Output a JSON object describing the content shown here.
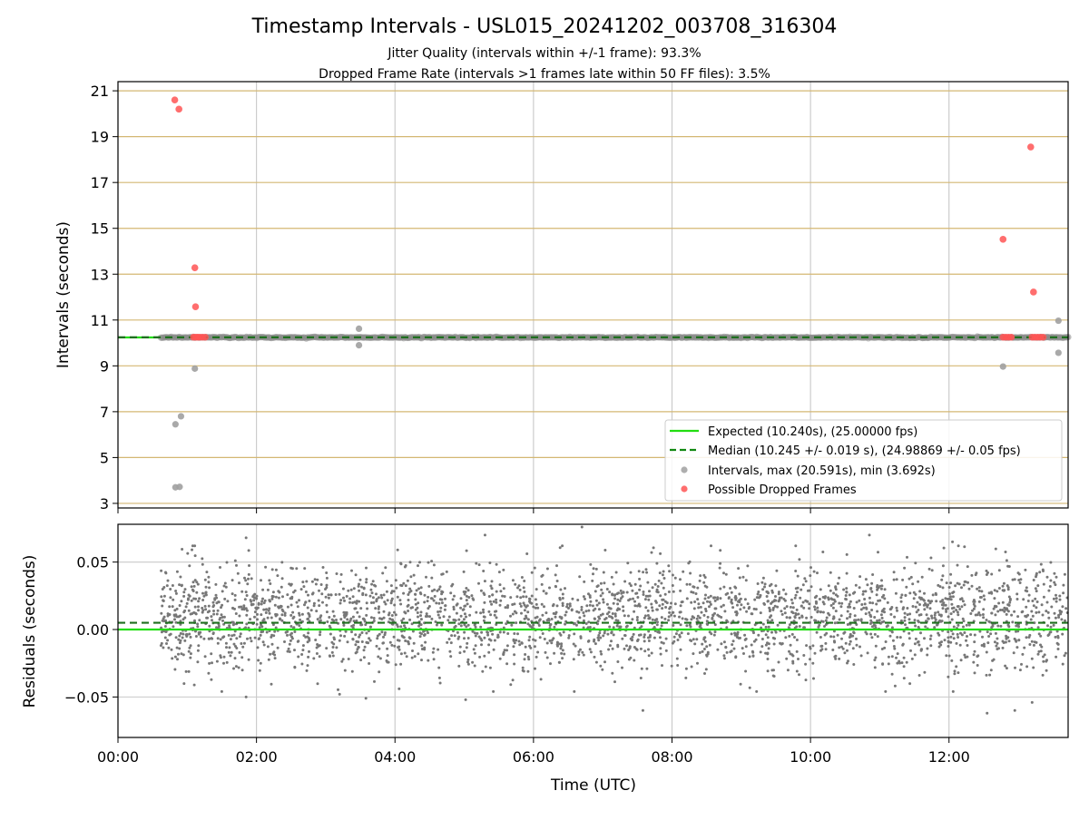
{
  "figure": {
    "title": "Timestamp Intervals - USL015_20241202_003708_316304",
    "subtitle_1": "Jitter Quality (intervals within +/-1 frame): 93.3%",
    "subtitle_2": "Dropped Frame Rate (intervals >1 frames late within 50 FF files): 3.5%"
  },
  "chart_data": [
    {
      "type": "scatter",
      "name": "intervals",
      "ylabel": "Intervals (seconds)",
      "xlim_hours": [
        0.0,
        13.72
      ],
      "ylim": [
        2.8,
        21.4
      ],
      "yticks": [
        "21",
        "19",
        "17",
        "15",
        "13",
        "11",
        "9",
        "7",
        "5",
        "3"
      ],
      "ytick_values": [
        21,
        19,
        17,
        15,
        13,
        11,
        9,
        7,
        5,
        3
      ],
      "grid": true,
      "gridline_color": "#d4b773",
      "expected_interval": 10.24,
      "median_interval": 10.245,
      "legend_position": "lower-right",
      "legend": [
        {
          "label": "Expected (10.240s), (25.00000 fps)",
          "style": "solid-line",
          "color": "#22dd11"
        },
        {
          "label": "Median (10.245 +/- 0.019 s), (24.98869 +/- 0.05 fps)",
          "style": "dashed-line",
          "color": "#118811"
        },
        {
          "label": "Intervals, max (20.591s), min (3.692s)",
          "style": "marker",
          "color": "#a0a0a0"
        },
        {
          "label": "Possible Dropped Frames",
          "style": "marker",
          "color": "#ff5555"
        }
      ],
      "intervals_band": {
        "x_start": 0.62,
        "x_end": 13.72,
        "y": 10.24
      },
      "gray_outliers": [
        {
          "x": 0.83,
          "y": 6.45
        },
        {
          "x": 0.91,
          "y": 6.8
        },
        {
          "x": 0.83,
          "y": 3.7
        },
        {
          "x": 0.89,
          "y": 3.72
        },
        {
          "x": 1.11,
          "y": 8.88
        },
        {
          "x": 3.48,
          "y": 10.62
        },
        {
          "x": 3.48,
          "y": 9.9
        },
        {
          "x": 12.78,
          "y": 8.97
        },
        {
          "x": 13.58,
          "y": 10.97
        },
        {
          "x": 13.58,
          "y": 9.57
        }
      ],
      "dropped_frames": [
        {
          "x": 0.82,
          "y": 20.6
        },
        {
          "x": 0.88,
          "y": 20.2
        },
        {
          "x": 1.11,
          "y": 13.28
        },
        {
          "x": 1.12,
          "y": 11.58
        },
        {
          "x": 1.09,
          "y": 10.25
        },
        {
          "x": 1.12,
          "y": 10.25
        },
        {
          "x": 1.15,
          "y": 10.25
        },
        {
          "x": 1.18,
          "y": 10.25
        },
        {
          "x": 1.22,
          "y": 10.25
        },
        {
          "x": 1.26,
          "y": 10.25
        },
        {
          "x": 12.78,
          "y": 14.52
        },
        {
          "x": 13.18,
          "y": 18.55
        },
        {
          "x": 13.22,
          "y": 12.22
        },
        {
          "x": 12.78,
          "y": 10.25
        },
        {
          "x": 12.82,
          "y": 10.25
        },
        {
          "x": 12.86,
          "y": 10.25
        },
        {
          "x": 12.9,
          "y": 10.25
        },
        {
          "x": 13.2,
          "y": 10.25
        },
        {
          "x": 13.24,
          "y": 10.25
        },
        {
          "x": 13.28,
          "y": 10.25
        },
        {
          "x": 13.32,
          "y": 10.25
        },
        {
          "x": 13.36,
          "y": 10.25
        }
      ]
    },
    {
      "type": "scatter",
      "name": "residuals",
      "ylabel": "Residuals (seconds)",
      "xlabel": "Time (UTC)",
      "xlim_hours": [
        0.0,
        13.72
      ],
      "ylim": [
        -0.08,
        0.078
      ],
      "yticks": [
        "0.05",
        "0.00",
        "−0.05"
      ],
      "ytick_values": [
        0.05,
        0.0,
        -0.05
      ],
      "xticks": [
        "00:00",
        "02:00",
        "04:00",
        "06:00",
        "08:00",
        "10:00",
        "12:00"
      ],
      "xtick_hours": [
        0,
        2,
        4,
        6,
        8,
        10,
        12
      ],
      "grid": true,
      "expected_residual": 0.0,
      "median_residual": 0.005,
      "residual_clusters": [
        0.02,
        -0.005
      ],
      "residual_spread": 0.015,
      "x_range_hours": [
        0.62,
        13.72
      ],
      "point_count": 3000,
      "extreme_points": [
        {
          "x": 1.85,
          "y": 0.068
        },
        {
          "x": 5.3,
          "y": 0.07
        },
        {
          "x": 6.7,
          "y": 0.076
        },
        {
          "x": 10.85,
          "y": 0.07
        },
        {
          "x": 12.05,
          "y": 0.065
        },
        {
          "x": 1.85,
          "y": -0.05
        },
        {
          "x": 3.2,
          "y": -0.048
        },
        {
          "x": 3.58,
          "y": -0.051
        },
        {
          "x": 5.02,
          "y": -0.052
        },
        {
          "x": 7.58,
          "y": -0.06
        },
        {
          "x": 12.55,
          "y": -0.062
        },
        {
          "x": 12.95,
          "y": -0.06
        },
        {
          "x": 13.2,
          "y": -0.054
        }
      ]
    }
  ]
}
